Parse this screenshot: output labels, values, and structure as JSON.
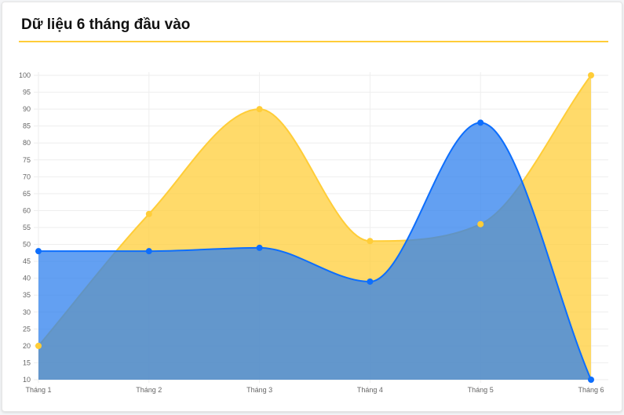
{
  "card": {
    "title": "Dữ liệu 6 tháng đầu vào"
  },
  "colors": {
    "accent": "#ffcd38",
    "yellow_fill": "#ffcd38",
    "yellow_line": "#ffcd38",
    "blue_fill": "#2f80ed",
    "blue_line": "#0d6efd",
    "grid": "#eeeeee",
    "tick_text": "#666666"
  },
  "chart_data": {
    "type": "area",
    "title": "Dữ liệu 6 tháng đầu vào",
    "categories": [
      "Tháng 1",
      "Tháng 2",
      "Tháng 3",
      "Tháng 4",
      "Tháng 5",
      "Tháng 6"
    ],
    "series": [
      {
        "values": [
          20,
          59,
          90,
          51,
          56,
          100
        ],
        "color": "yellow"
      },
      {
        "values": [
          48,
          48,
          49,
          39,
          86,
          10
        ],
        "color": "blue"
      }
    ],
    "ylim": [
      10,
      100
    ],
    "yticks": [
      10,
      15,
      20,
      25,
      30,
      35,
      40,
      45,
      50,
      55,
      60,
      65,
      70,
      75,
      80,
      85,
      90,
      95,
      100
    ],
    "grid": true,
    "legend": "none",
    "smooth": true,
    "xlabel": "",
    "ylabel": ""
  }
}
